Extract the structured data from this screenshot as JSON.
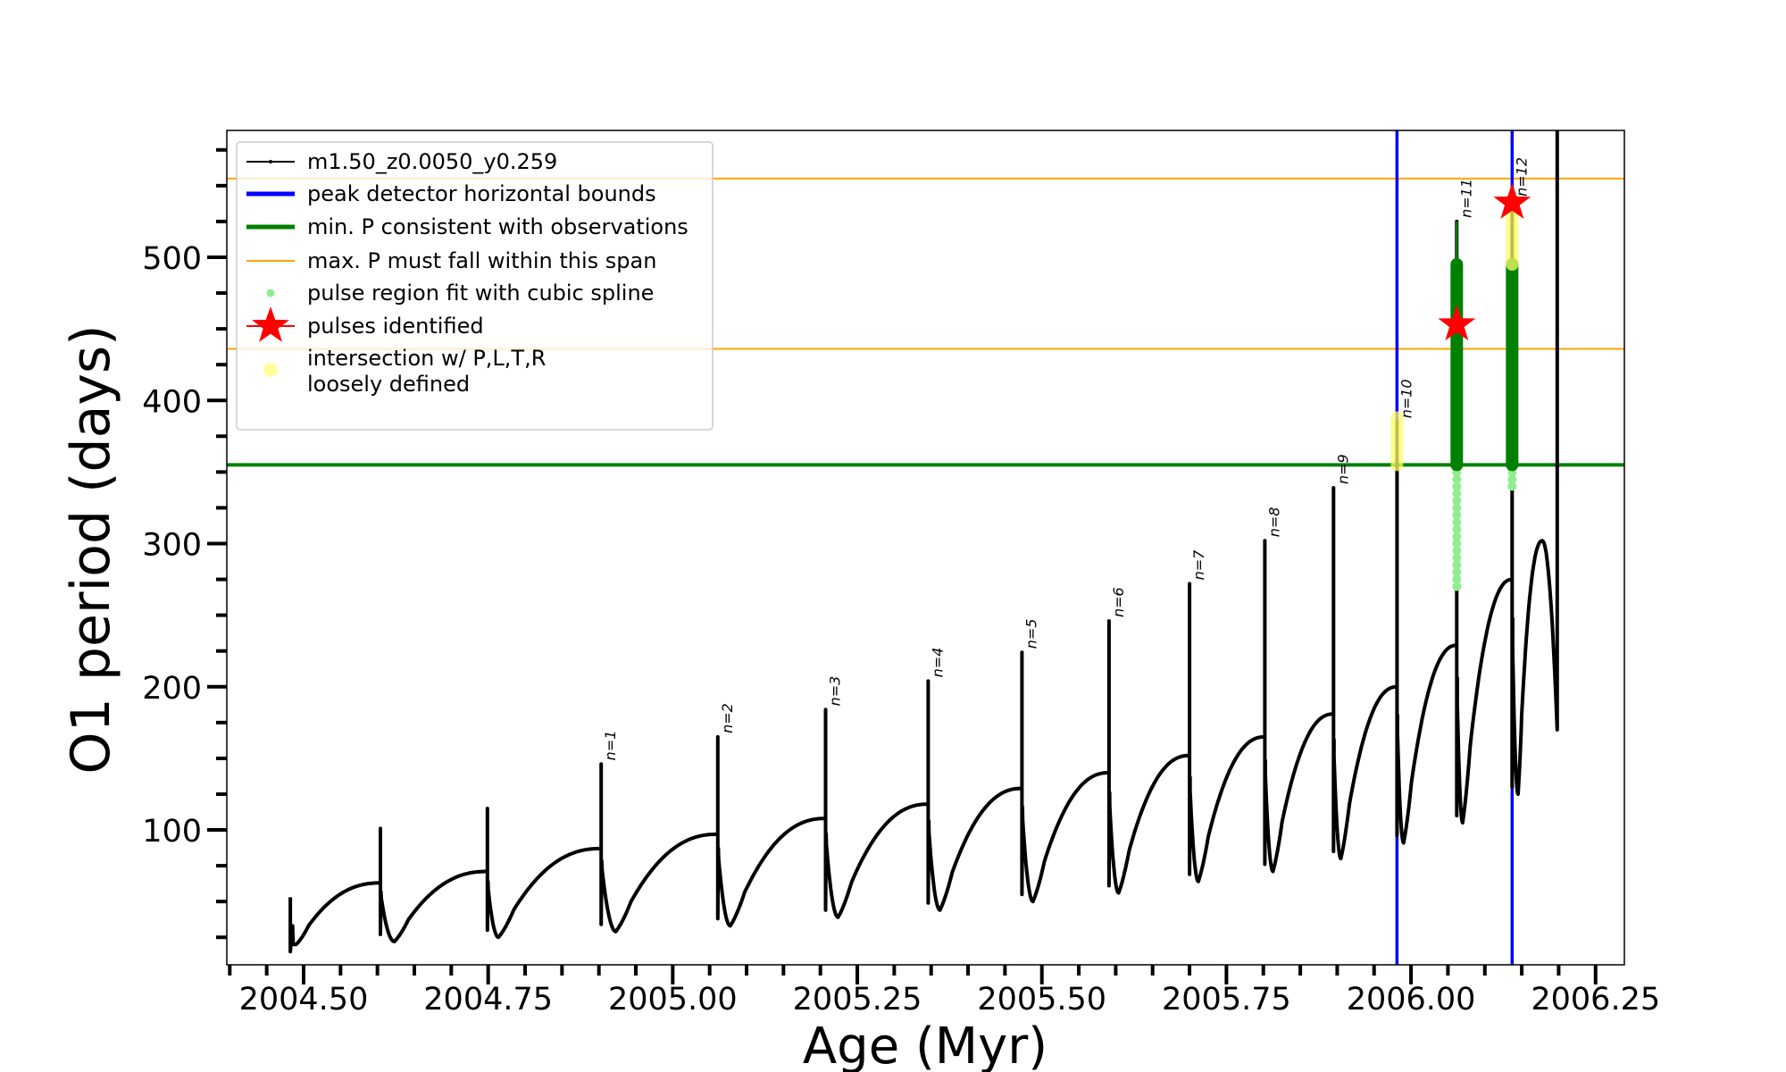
{
  "chart_data": {
    "type": "line",
    "xlabel": "Age (Myr)",
    "ylabel": "O1 period (days)",
    "xlim": [
      2004.396,
      2006.289
    ],
    "ylim": [
      5.8,
      588.6
    ],
    "xticks": [
      2004.5,
      2004.75,
      2005.0,
      2005.25,
      2005.5,
      2005.75,
      2006.0,
      2006.25
    ],
    "xtick_labels": [
      "2004.50",
      "2004.75",
      "2005.00",
      "2005.25",
      "2005.50",
      "2005.75",
      "2006.00",
      "2006.25"
    ],
    "yticks": [
      100,
      200,
      300,
      400,
      500
    ],
    "ytick_labels": [
      "100",
      "200",
      "300",
      "400",
      "500"
    ],
    "grid": false,
    "legend_placement": "upper-left",
    "legend": [
      {
        "label": "m1.50_z0.0050_y0.259",
        "kind": "line-marker",
        "color": "#000000"
      },
      {
        "label": "peak detector horizontal bounds",
        "kind": "line",
        "color": "#0000ff"
      },
      {
        "label": "min. P consistent with observations",
        "kind": "line",
        "color": "#008000"
      },
      {
        "label": "max. P must fall within this span",
        "kind": "line",
        "color": "#ffa500"
      },
      {
        "label": "pulse region fit with cubic spline",
        "kind": "dot",
        "color": "#90ee90"
      },
      {
        "label": "pulses identified",
        "kind": "star",
        "color": "#ff0000"
      },
      {
        "label": "intersection w/ P,L,T,R",
        "label2": "loosely defined",
        "kind": "dot",
        "color": "#ffffa0"
      }
    ],
    "track": {
      "name": "m1.50_z0.0050_y0.259",
      "start": {
        "age": 2004.482,
        "period_high": 53,
        "period_low": 15,
        "dip_age": 2004.49,
        "dip": 20
      },
      "pulses": [
        {
          "label": "",
          "age": 2004.604,
          "pre": 63,
          "peak": 101,
          "dip_age": 2004.623,
          "dip": 22
        },
        {
          "label": "",
          "age": 2004.749,
          "pre": 71,
          "peak": 115,
          "dip_age": 2004.764,
          "dip": 25
        },
        {
          "label": "n=1",
          "age": 2004.903,
          "pre": 87,
          "peak": 146,
          "dip_age": 2004.923,
          "dip": 29
        },
        {
          "label": "n=2",
          "age": 2005.061,
          "pre": 97,
          "peak": 165,
          "dip_age": 2005.078,
          "dip": 33
        },
        {
          "label": "n=3",
          "age": 2005.207,
          "pre": 108,
          "peak": 184,
          "dip_age": 2005.224,
          "dip": 39
        },
        {
          "label": "n=4",
          "age": 2005.346,
          "pre": 118,
          "peak": 204,
          "dip_age": 2005.362,
          "dip": 44
        },
        {
          "label": "n=5",
          "age": 2005.473,
          "pre": 129,
          "peak": 224,
          "dip_age": 2005.488,
          "dip": 50
        },
        {
          "label": "n=6",
          "age": 2005.591,
          "pre": 140,
          "peak": 246,
          "dip_age": 2005.604,
          "dip": 56
        },
        {
          "label": "n=7",
          "age": 2005.7,
          "pre": 152,
          "peak": 272,
          "dip_age": 2005.712,
          "dip": 64
        },
        {
          "label": "n=8",
          "age": 2005.802,
          "pre": 165,
          "peak": 302,
          "dip_age": 2005.813,
          "dip": 71
        },
        {
          "label": "n=9",
          "age": 2005.895,
          "pre": 181,
          "peak": 339,
          "dip_age": 2005.905,
          "dip": 80
        },
        {
          "label": "n=10",
          "age": 2005.981,
          "pre": 200,
          "peak": 385,
          "dip_age": 2005.99,
          "dip": 91
        },
        {
          "label": "n=11",
          "age": 2006.062,
          "pre": 229,
          "peak": 525,
          "dip_age": 2006.07,
          "dip": 105
        },
        {
          "label": "n=12",
          "age": 2006.137,
          "pre": 275,
          "peak": 540,
          "dip_age": 2006.145,
          "dip": 125
        }
      ],
      "end": {
        "max_age": 2006.178,
        "max": 302,
        "final_age": 2006.198,
        "final": 170
      }
    },
    "peak_detector_bounds": [
      2005.981,
      2006.137
    ],
    "min_period": 355,
    "max_period_span": [
      436,
      555
    ],
    "spline_regions": [
      {
        "age": 2006.062,
        "light_range": [
          270,
          355
        ],
        "dark_range": [
          355,
          495
        ]
      },
      {
        "age": 2006.137,
        "light_range": [
          340,
          355
        ],
        "dark_range": [
          355,
          495
        ]
      }
    ],
    "loosely_defined_regions": [
      {
        "age": 2005.981,
        "range": [
          355,
          388
        ]
      },
      {
        "age": 2006.137,
        "range": [
          495,
          540
        ]
      }
    ],
    "pulses_identified": [
      {
        "age": 2006.062,
        "period": 453
      },
      {
        "age": 2006.137,
        "period": 538
      }
    ],
    "colors": {
      "track": "#000000",
      "bounds": "#0000ff",
      "min": "#008000",
      "max": "#ffa500",
      "spline_light": "#90ee90",
      "spline_dark": "#008000",
      "star": "#ff0000",
      "loose": "#ffff66"
    }
  }
}
